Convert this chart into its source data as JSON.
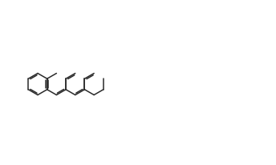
{
  "bg_color": "#ffffff",
  "line_color": "#2a2a2a",
  "figsize": [
    3.44,
    2.06
  ],
  "dpi": 100
}
